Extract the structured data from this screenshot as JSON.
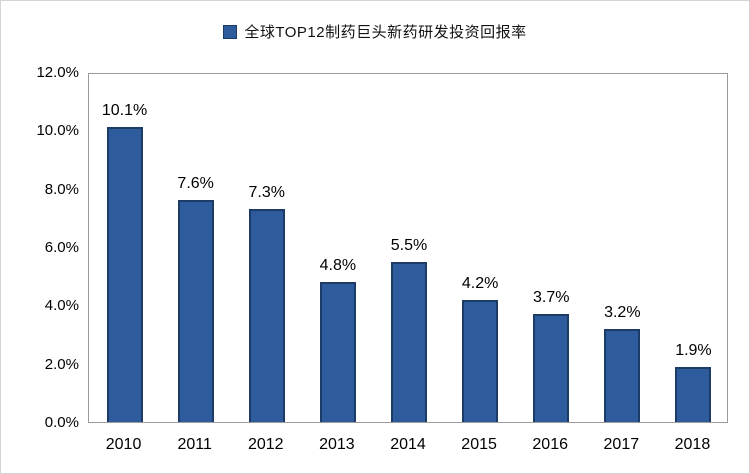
{
  "chart_data": {
    "type": "bar",
    "title": "全球TOP12制药巨头新药研发投资回报率",
    "legend": [
      {
        "label": "全球TOP12制药巨头新药研发投资回报率",
        "color": "#2e5b9b"
      }
    ],
    "legend_position": "top-center",
    "categories": [
      "2010",
      "2011",
      "2012",
      "2013",
      "2014",
      "2015",
      "2016",
      "2017",
      "2018"
    ],
    "values": [
      10.1,
      7.6,
      7.3,
      4.8,
      5.5,
      4.2,
      3.7,
      3.2,
      1.9
    ],
    "value_labels": [
      "10.1%",
      "7.6%",
      "7.3%",
      "4.8%",
      "5.5%",
      "4.2%",
      "3.7%",
      "3.2%",
      "1.9%"
    ],
    "xlabel": "",
    "ylabel": "",
    "ylim": [
      0,
      12
    ],
    "ytick_labels": [
      "0.0%",
      "2.0%",
      "4.0%",
      "6.0%",
      "8.0%",
      "10.0%",
      "12.0%"
    ],
    "grid": false,
    "bar_color": "#2e5b9b",
    "bar_border_color": "#1c3b66",
    "plot_border_color": "#9b9b9b"
  }
}
